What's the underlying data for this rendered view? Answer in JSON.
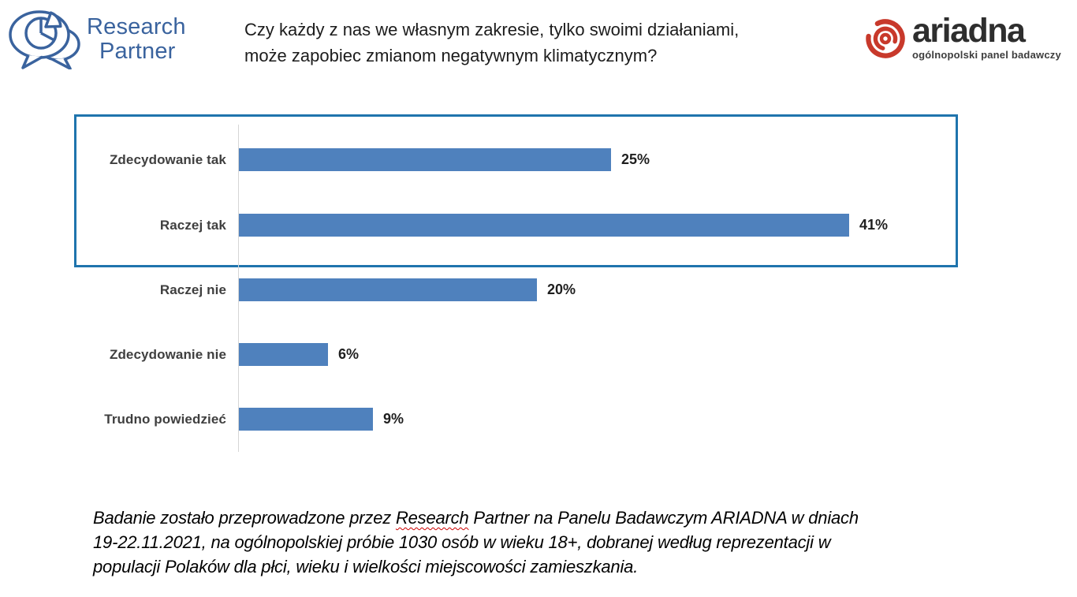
{
  "header": {
    "question": {
      "line1": "Czy każdy z nas we własnym zakresie, tylko swoimi działaniami,",
      "line2": "może zapobiec zmianom negatywnym klimatycznym?"
    },
    "research_partner": {
      "name_line1": "Research",
      "name_line2": "Partner",
      "icon": "speech-bubbles-pie-chart",
      "brand_color": "#3a639e"
    },
    "ariadna": {
      "name": "ariadna",
      "tagline": "ogólnopolski panel badawczy",
      "icon": "red-concentric-rings",
      "icon_color": "#c8392b",
      "text_color": "#2e2e2e"
    }
  },
  "chart_data": {
    "type": "bar",
    "orientation": "horizontal",
    "title": "",
    "xlabel": "",
    "ylabel": "",
    "categories": [
      "Zdecydowanie tak",
      "Raczej tak",
      "Raczej nie",
      "Zdecydowanie nie",
      "Trudno powiedzieć"
    ],
    "values": [
      25,
      41,
      20,
      6,
      9
    ],
    "value_labels": [
      "25%",
      "41%",
      "20%",
      "6%",
      "9%"
    ],
    "unit": "%",
    "xlim": [
      0,
      45
    ],
    "gridlines": false,
    "legend": false,
    "bar_color": "#4f81bd",
    "highlighted_categories": [
      "Zdecydowanie tak",
      "Raczej tak"
    ],
    "highlight_border_color": "#1f74ad"
  },
  "footer": {
    "line1_prefix": "Badanie zostało przeprowadzone przez ",
    "line1_underlined_word": "Research",
    "line1_suffix": " Partner na Panelu Badawczym ARIADNA w dniach",
    "line2": "19-22.11.2021, na ogólnopolskiej próbie 1030 osób w wieku 18+, dobranej według reprezentacji w",
    "line3": "populacji Polaków dla płci, wieku i wielkości miejscowości zamieszkania."
  }
}
